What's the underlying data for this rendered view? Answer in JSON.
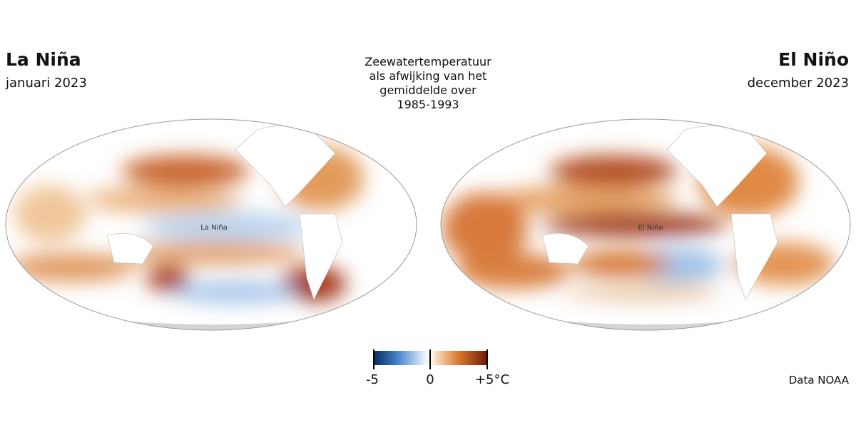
{
  "left": {
    "title": "La Niña",
    "subtitle": "januari 2023",
    "map_label": "La Niña"
  },
  "right": {
    "title": "El Niño",
    "subtitle": "december 2023",
    "map_label": "El Niño"
  },
  "center_title": [
    "Zeewatertemperatuur",
    "als afwijking van het",
    "gemiddelde over",
    "1985-1993"
  ],
  "legend": {
    "labels": [
      "-5",
      "0",
      "+5°C"
    ]
  },
  "source": "Data NOAA"
}
